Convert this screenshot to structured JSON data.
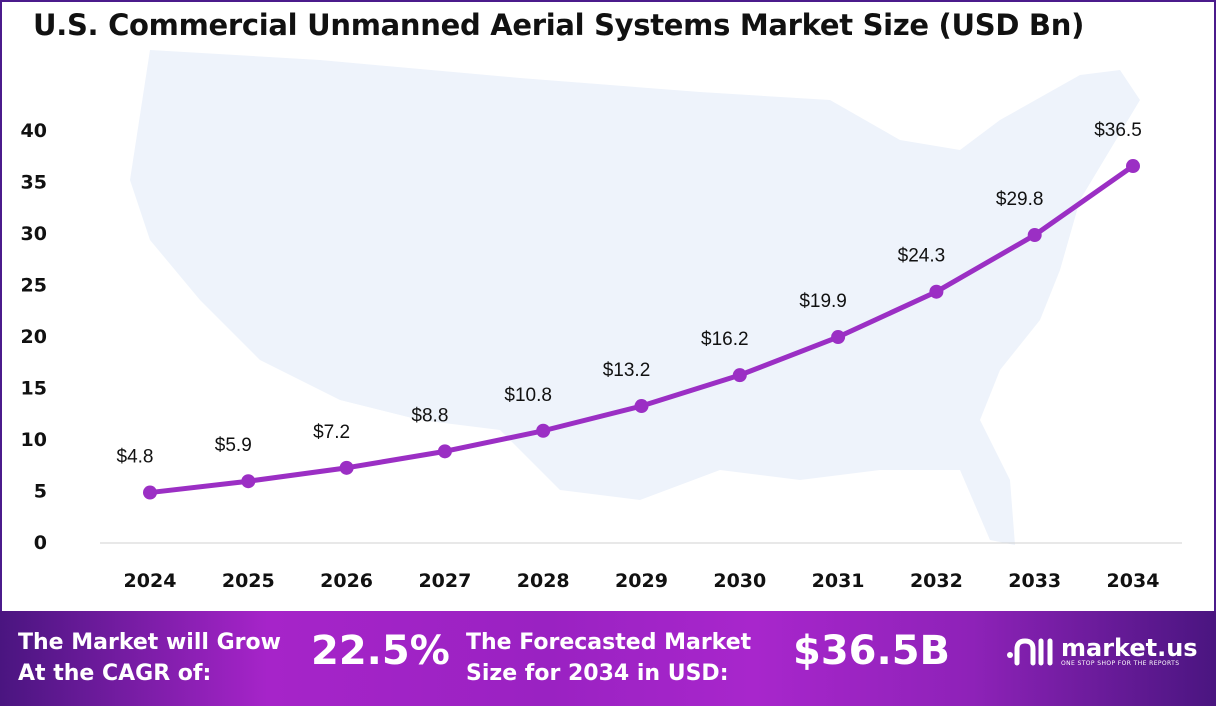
{
  "chart_data": {
    "type": "line",
    "title": "U.S. Commercial Unmanned Aerial Systems Market Size (USD Bn)",
    "categories": [
      "2024",
      "2025",
      "2026",
      "2027",
      "2028",
      "2029",
      "2030",
      "2031",
      "2032",
      "2033",
      "2034"
    ],
    "values": [
      4.8,
      5.9,
      7.2,
      8.8,
      10.8,
      13.2,
      16.2,
      19.9,
      24.3,
      29.8,
      36.5
    ],
    "data_labels": [
      "$4.8",
      "$5.9",
      "$7.2",
      "$8.8",
      "$10.8",
      "$13.2",
      "$16.2",
      "$19.9",
      "$24.3",
      "$29.8",
      "$36.5"
    ],
    "yticks": [
      "0",
      "5",
      "10",
      "15",
      "20",
      "25",
      "30",
      "35",
      "40"
    ],
    "ylim": [
      0,
      40
    ],
    "grid": false,
    "line_color": "#9b2fc4"
  },
  "footer": {
    "cagr_label_1": "The Market will Grow",
    "cagr_label_2": "At the CAGR of:",
    "cagr_value": "22.5%",
    "forecast_label_1": "The Forecasted Market",
    "forecast_label_2": "Size for 2034 in USD:",
    "forecast_value": "$36.5B",
    "logo_name": "market.us",
    "logo_tagline": "ONE STOP SHOP FOR THE REPORTS"
  }
}
